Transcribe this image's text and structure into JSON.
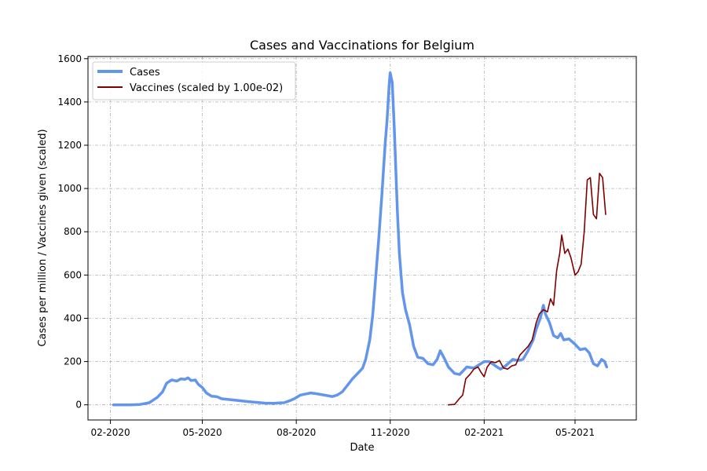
{
  "chart_data": {
    "type": "line",
    "title": "Cases and Vaccinations for Belgium",
    "xlabel": "Date",
    "ylabel": "Cases per million / Vaccines given (scaled)",
    "xlim": [
      "2020-01-10",
      "2021-06-30"
    ],
    "ylim": [
      -70,
      1610
    ],
    "x_ticks": [
      {
        "date": "2020-02-01",
        "label": "02-2020"
      },
      {
        "date": "2020-05-01",
        "label": "05-2020"
      },
      {
        "date": "2020-08-01",
        "label": "08-2020"
      },
      {
        "date": "2020-11-01",
        "label": "11-2020"
      },
      {
        "date": "2021-02-01",
        "label": "02-2021"
      },
      {
        "date": "2021-05-01",
        "label": "05-2021"
      }
    ],
    "y_ticks": [
      0,
      200,
      400,
      600,
      800,
      1000,
      1200,
      1400,
      1600
    ],
    "grid": true,
    "legend_position": "top-left",
    "series": [
      {
        "name": "Cases",
        "color": "#6495ed",
        "points": [
          [
            "2020-02-04",
            0
          ],
          [
            "2020-02-20",
            0
          ],
          [
            "2020-03-01",
            2
          ],
          [
            "2020-03-10",
            10
          ],
          [
            "2020-03-18",
            35
          ],
          [
            "2020-03-23",
            60
          ],
          [
            "2020-03-27",
            100
          ],
          [
            "2020-04-01",
            115
          ],
          [
            "2020-04-06",
            110
          ],
          [
            "2020-04-10",
            120
          ],
          [
            "2020-04-14",
            118
          ],
          [
            "2020-04-17",
            125
          ],
          [
            "2020-04-20",
            112
          ],
          [
            "2020-04-24",
            115
          ],
          [
            "2020-04-27",
            95
          ],
          [
            "2020-05-01",
            80
          ],
          [
            "2020-05-05",
            55
          ],
          [
            "2020-05-10",
            40
          ],
          [
            "2020-05-15",
            38
          ],
          [
            "2020-05-20",
            28
          ],
          [
            "2020-06-01",
            22
          ],
          [
            "2020-06-15",
            15
          ],
          [
            "2020-07-01",
            8
          ],
          [
            "2020-07-10",
            7
          ],
          [
            "2020-07-15",
            9
          ],
          [
            "2020-07-20",
            10
          ],
          [
            "2020-07-25",
            18
          ],
          [
            "2020-07-30",
            28
          ],
          [
            "2020-08-05",
            45
          ],
          [
            "2020-08-10",
            50
          ],
          [
            "2020-08-15",
            55
          ],
          [
            "2020-08-20",
            52
          ],
          [
            "2020-08-25",
            48
          ],
          [
            "2020-09-01",
            42
          ],
          [
            "2020-09-05",
            38
          ],
          [
            "2020-09-10",
            45
          ],
          [
            "2020-09-15",
            60
          ],
          [
            "2020-09-20",
            90
          ],
          [
            "2020-09-25",
            120
          ],
          [
            "2020-10-01",
            150
          ],
          [
            "2020-10-05",
            170
          ],
          [
            "2020-10-08",
            210
          ],
          [
            "2020-10-12",
            300
          ],
          [
            "2020-10-15",
            420
          ],
          [
            "2020-10-18",
            600
          ],
          [
            "2020-10-21",
            780
          ],
          [
            "2020-10-24",
            980
          ],
          [
            "2020-10-27",
            1200
          ],
          [
            "2020-10-29",
            1320
          ],
          [
            "2020-10-31",
            1480
          ],
          [
            "2020-11-01",
            1535
          ],
          [
            "2020-11-03",
            1490
          ],
          [
            "2020-11-05",
            1280
          ],
          [
            "2020-11-08",
            900
          ],
          [
            "2020-11-10",
            700
          ],
          [
            "2020-11-13",
            520
          ],
          [
            "2020-11-16",
            440
          ],
          [
            "2020-11-20",
            370
          ],
          [
            "2020-11-24",
            270
          ],
          [
            "2020-11-28",
            220
          ],
          [
            "2020-12-03",
            215
          ],
          [
            "2020-12-08",
            190
          ],
          [
            "2020-12-13",
            185
          ],
          [
            "2020-12-17",
            210
          ],
          [
            "2020-12-20",
            250
          ],
          [
            "2020-12-24",
            215
          ],
          [
            "2020-12-28",
            175
          ],
          [
            "2021-01-03",
            145
          ],
          [
            "2021-01-08",
            140
          ],
          [
            "2021-01-15",
            175
          ],
          [
            "2021-01-22",
            170
          ],
          [
            "2021-02-01",
            200
          ],
          [
            "2021-02-06",
            200
          ],
          [
            "2021-02-12",
            180
          ],
          [
            "2021-02-17",
            165
          ],
          [
            "2021-02-22",
            180
          ],
          [
            "2021-03-01",
            210
          ],
          [
            "2021-03-06",
            205
          ],
          [
            "2021-03-11",
            210
          ],
          [
            "2021-03-16",
            250
          ],
          [
            "2021-03-21",
            300
          ],
          [
            "2021-03-24",
            350
          ],
          [
            "2021-03-28",
            400
          ],
          [
            "2021-03-31",
            460
          ],
          [
            "2021-04-02",
            420
          ],
          [
            "2021-04-06",
            380
          ],
          [
            "2021-04-10",
            320
          ],
          [
            "2021-04-14",
            310
          ],
          [
            "2021-04-17",
            330
          ],
          [
            "2021-04-20",
            300
          ],
          [
            "2021-04-25",
            305
          ],
          [
            "2021-05-01",
            280
          ],
          [
            "2021-05-06",
            255
          ],
          [
            "2021-05-11",
            260
          ],
          [
            "2021-05-15",
            240
          ],
          [
            "2021-05-19",
            190
          ],
          [
            "2021-05-23",
            180
          ],
          [
            "2021-05-27",
            210
          ],
          [
            "2021-05-30",
            200
          ],
          [
            "2021-06-01",
            175
          ]
        ]
      },
      {
        "name": "Vaccines (scaled by 1.00e-02)",
        "color": "#800000",
        "points": [
          [
            "2020-12-28",
            0
          ],
          [
            "2021-01-03",
            2
          ],
          [
            "2021-01-08",
            30
          ],
          [
            "2021-01-11",
            45
          ],
          [
            "2021-01-14",
            120
          ],
          [
            "2021-01-18",
            140
          ],
          [
            "2021-01-22",
            165
          ],
          [
            "2021-01-26",
            175
          ],
          [
            "2021-01-29",
            150
          ],
          [
            "2021-02-01",
            130
          ],
          [
            "2021-02-04",
            175
          ],
          [
            "2021-02-08",
            200
          ],
          [
            "2021-02-12",
            195
          ],
          [
            "2021-02-16",
            205
          ],
          [
            "2021-02-20",
            170
          ],
          [
            "2021-02-24",
            165
          ],
          [
            "2021-02-28",
            180
          ],
          [
            "2021-03-04",
            185
          ],
          [
            "2021-03-08",
            230
          ],
          [
            "2021-03-12",
            250
          ],
          [
            "2021-03-16",
            270
          ],
          [
            "2021-03-20",
            300
          ],
          [
            "2021-03-24",
            380
          ],
          [
            "2021-03-27",
            420
          ],
          [
            "2021-03-31",
            440
          ],
          [
            "2021-04-04",
            430
          ],
          [
            "2021-04-07",
            490
          ],
          [
            "2021-04-10",
            460
          ],
          [
            "2021-04-13",
            620
          ],
          [
            "2021-04-16",
            700
          ],
          [
            "2021-04-18",
            785
          ],
          [
            "2021-04-21",
            700
          ],
          [
            "2021-04-24",
            720
          ],
          [
            "2021-04-27",
            680
          ],
          [
            "2021-05-01",
            600
          ],
          [
            "2021-05-04",
            615
          ],
          [
            "2021-05-07",
            650
          ],
          [
            "2021-05-10",
            800
          ],
          [
            "2021-05-13",
            1040
          ],
          [
            "2021-05-16",
            1050
          ],
          [
            "2021-05-19",
            880
          ],
          [
            "2021-05-22",
            860
          ],
          [
            "2021-05-25",
            1070
          ],
          [
            "2021-05-28",
            1050
          ],
          [
            "2021-05-31",
            880
          ]
        ]
      }
    ]
  }
}
